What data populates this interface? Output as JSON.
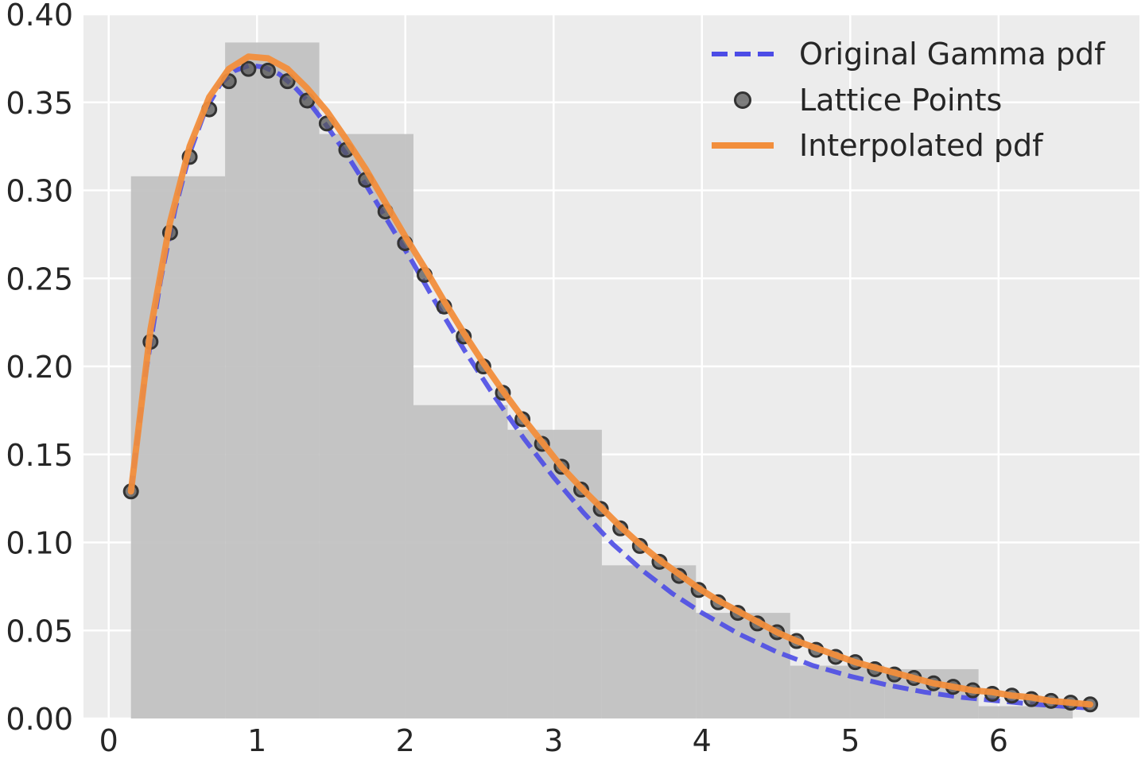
{
  "chart_data": {
    "type": "line",
    "title": "",
    "xlabel": "",
    "ylabel": "",
    "xlim": [
      -0.17,
      6.95
    ],
    "ylim": [
      0.0,
      0.4
    ],
    "xticks": [
      0,
      1,
      2,
      3,
      4,
      5,
      6
    ],
    "xtick_labels": [
      "0",
      "1",
      "2",
      "3",
      "4",
      "5",
      "6"
    ],
    "yticks": [
      0.0,
      0.05,
      0.1,
      0.15,
      0.2,
      0.25,
      0.3,
      0.35,
      0.4
    ],
    "ytick_labels": [
      "0.00",
      "0.05",
      "0.10",
      "0.15",
      "0.20",
      "0.25",
      "0.30",
      "0.35",
      "0.40"
    ],
    "grid": true,
    "legend_position": "top-right",
    "histogram": {
      "color": "#c0c0c0",
      "edges": [
        0.15,
        0.785,
        1.42,
        2.055,
        2.69,
        3.325,
        3.96,
        4.595,
        5.23,
        5.865,
        6.5
      ],
      "heights": [
        0.308,
        0.384,
        0.332,
        0.178,
        0.164,
        0.087,
        0.06,
        0.03,
        0.028,
        0.007
      ]
    },
    "series": [
      {
        "name": "Original Gamma pdf",
        "kind": "dashed-line",
        "color": "#4c4ce6",
        "x": [
          0.15,
          0.25,
          0.35,
          0.45,
          0.55,
          0.65,
          0.75,
          0.85,
          0.95,
          1.05,
          1.15,
          1.25,
          1.35,
          1.45,
          1.6,
          1.75,
          1.9,
          2.05,
          2.2,
          2.4,
          2.6,
          2.8,
          3.0,
          3.2,
          3.4,
          3.6,
          3.8,
          4.0,
          4.25,
          4.5,
          4.75,
          5.0,
          5.25,
          5.5,
          5.75,
          6.0,
          6.25,
          6.6
        ],
        "y": [
          0.129,
          0.196,
          0.249,
          0.29,
          0.322,
          0.345,
          0.36,
          0.368,
          0.371,
          0.37,
          0.366,
          0.359,
          0.35,
          0.339,
          0.321,
          0.301,
          0.28,
          0.259,
          0.237,
          0.209,
          0.183,
          0.159,
          0.137,
          0.117,
          0.099,
          0.084,
          0.071,
          0.06,
          0.048,
          0.038,
          0.03,
          0.024,
          0.019,
          0.015,
          0.012,
          0.01,
          0.008,
          0.006
        ]
      },
      {
        "name": "Lattice Points",
        "kind": "markers",
        "color": "#555555",
        "x": [
          0.15,
          0.282,
          0.414,
          0.546,
          0.678,
          0.81,
          0.942,
          1.074,
          1.206,
          1.338,
          1.47,
          1.602,
          1.734,
          1.866,
          1.998,
          2.13,
          2.262,
          2.394,
          2.526,
          2.658,
          2.79,
          2.922,
          3.054,
          3.186,
          3.318,
          3.45,
          3.582,
          3.714,
          3.846,
          3.978,
          4.11,
          4.242,
          4.374,
          4.506,
          4.638,
          4.77,
          4.902,
          5.034,
          5.166,
          5.298,
          5.43,
          5.562,
          5.694,
          5.826,
          5.958,
          6.09,
          6.222,
          6.354,
          6.486,
          6.618
        ],
        "y": [
          0.129,
          0.214,
          0.276,
          0.319,
          0.346,
          0.362,
          0.369,
          0.368,
          0.362,
          0.351,
          0.338,
          0.323,
          0.306,
          0.288,
          0.27,
          0.252,
          0.234,
          0.217,
          0.2,
          0.185,
          0.17,
          0.156,
          0.143,
          0.13,
          0.119,
          0.108,
          0.098,
          0.089,
          0.081,
          0.073,
          0.066,
          0.06,
          0.054,
          0.049,
          0.044,
          0.039,
          0.035,
          0.032,
          0.028,
          0.025,
          0.023,
          0.02,
          0.018,
          0.016,
          0.014,
          0.013,
          0.011,
          0.01,
          0.009,
          0.008
        ]
      },
      {
        "name": "Interpolated pdf",
        "kind": "solid-line",
        "color": "#f28e3c",
        "x": [
          0.15,
          0.282,
          0.414,
          0.546,
          0.678,
          0.81,
          0.942,
          1.074,
          1.206,
          1.338,
          1.47,
          1.602,
          1.734,
          1.866,
          1.998,
          2.13,
          2.262,
          2.394,
          2.526,
          2.658,
          2.79,
          2.922,
          3.054,
          3.186,
          3.318,
          3.45,
          3.582,
          3.714,
          3.846,
          3.978,
          4.11,
          4.242,
          4.374,
          4.506,
          4.638,
          4.77,
          4.902,
          5.034,
          5.166,
          5.298,
          5.43,
          5.562,
          5.694,
          5.826,
          5.958,
          6.09,
          6.222,
          6.354,
          6.486,
          6.618
        ],
        "y": [
          0.129,
          0.221,
          0.282,
          0.325,
          0.353,
          0.369,
          0.376,
          0.375,
          0.369,
          0.358,
          0.345,
          0.329,
          0.312,
          0.293,
          0.274,
          0.256,
          0.237,
          0.219,
          0.202,
          0.186,
          0.171,
          0.157,
          0.143,
          0.131,
          0.12,
          0.109,
          0.099,
          0.09,
          0.082,
          0.074,
          0.067,
          0.061,
          0.055,
          0.049,
          0.044,
          0.04,
          0.036,
          0.032,
          0.029,
          0.026,
          0.023,
          0.02,
          0.018,
          0.016,
          0.015,
          0.013,
          0.012,
          0.01,
          0.009,
          0.008
        ]
      }
    ]
  }
}
